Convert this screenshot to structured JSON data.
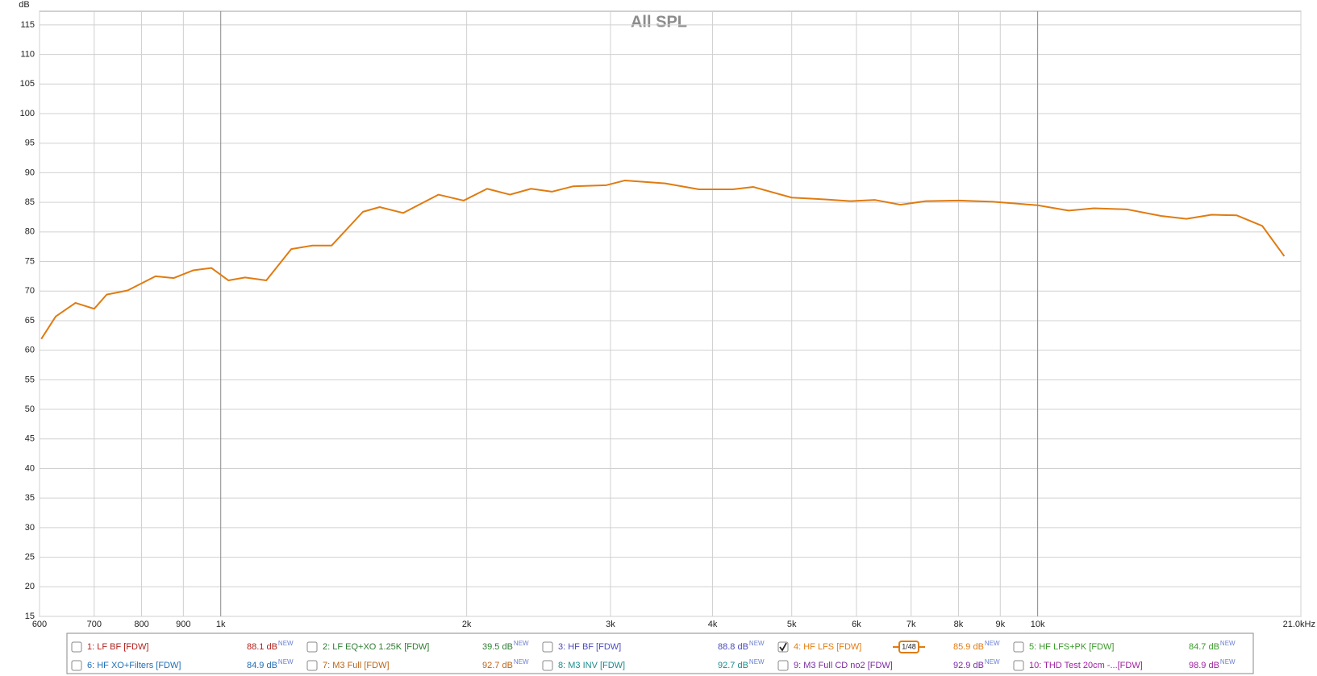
{
  "chart_data": {
    "type": "line",
    "title": "All SPL",
    "y_label": "dB",
    "x_scale": "log",
    "grid": true,
    "xlim": [
      600,
      21000
    ],
    "ylim": [
      15,
      117.3
    ],
    "xticks": [
      600,
      700,
      800,
      900,
      {
        "value": 1000,
        "label": "1k"
      },
      {
        "value": 2000,
        "label": "2k"
      },
      {
        "value": 3000,
        "label": "3k"
      },
      {
        "value": 4000,
        "label": "4k"
      },
      {
        "value": 5000,
        "label": "5k"
      },
      {
        "value": 6000,
        "label": "6k"
      },
      {
        "value": 7000,
        "label": "7k"
      },
      {
        "value": 8000,
        "label": "8k"
      },
      {
        "value": 9000,
        "label": "9k"
      },
      {
        "value": 10000,
        "label": "10k"
      },
      {
        "value": 21000,
        "label": "21.0kHz"
      }
    ],
    "yticks": [
      15,
      20,
      25,
      30,
      35,
      40,
      45,
      50,
      55,
      60,
      65,
      70,
      75,
      80,
      85,
      90,
      95,
      100,
      105,
      110,
      115
    ],
    "x": [
      603,
      628,
      664,
      700,
      725,
      769,
      832,
      876,
      925,
      974,
      1022,
      1071,
      1137,
      1220,
      1295,
      1367,
      1493,
      1565,
      1672,
      1847,
      1983,
      2119,
      2259,
      2398,
      2543,
      2698,
      2965,
      3125,
      3501,
      3849,
      4234,
      4488,
      4999,
      5494,
      5900,
      6324,
      6792,
      7294,
      8017,
      8814,
      10000,
      10914,
      11718,
      12880,
      14160,
      15210,
      16330,
      17530,
      18840,
      20040
    ],
    "series": [
      {
        "color": "#e07b10",
        "values": [
          61.9,
          65.7,
          68.0,
          67.0,
          69.4,
          70.1,
          72.5,
          72.2,
          73.5,
          73.9,
          71.8,
          72.3,
          71.8,
          77.1,
          77.7,
          77.7,
          83.4,
          84.2,
          83.2,
          86.3,
          85.3,
          87.3,
          86.3,
          87.3,
          86.8,
          87.7,
          87.9,
          88.7,
          88.2,
          87.2,
          87.2,
          87.6,
          85.8,
          85.5,
          85.2,
          85.4,
          84.6,
          85.2,
          85.3,
          85.1,
          84.5,
          83.6,
          84.0,
          83.8,
          82.7,
          82.2,
          82.9,
          82.8,
          81.0,
          75.9
        ]
      }
    ]
  },
  "legend": {
    "new_badge": "NEW",
    "smoothing": "1/48",
    "entries": [
      {
        "label": "1: LF BF [FDW]",
        "level": "88.1 dB",
        "color": "#b0201c",
        "checked": false
      },
      {
        "label": "2: LF EQ+XO 1.25K [FDW]",
        "level": "39.5 dB",
        "color": "#2e7d32",
        "checked": false
      },
      {
        "label": "3: HF BF [FDW]",
        "level": "88.8 dB",
        "color": "#4a4ac0",
        "checked": false
      },
      {
        "label": "4: HF LFS [FDW]",
        "level": "85.9 dB",
        "color": "#e07b10",
        "checked": true
      },
      {
        "label": "5: HF LFS+PK [FDW]",
        "level": "84.7 dB",
        "color": "#3a9a2a",
        "checked": false
      },
      {
        "label": "6: HF XO+Filters [FDW]",
        "level": "84.9 dB",
        "color": "#1e6eb4",
        "checked": false
      },
      {
        "label": "7: M3 Full [FDW]",
        "level": "92.7 dB",
        "color": "#b8651a",
        "checked": false
      },
      {
        "label": "8: M3 INV [FDW]",
        "level": "92.7 dB",
        "color": "#1a8a8a",
        "checked": false
      },
      {
        "label": "9: M3 Full CD no2 [FDW]",
        "level": "92.9 dB",
        "color": "#7a2aa0",
        "checked": false
      },
      {
        "label": "10: THD Test 20cm -...[FDW]",
        "level": "98.9 dB",
        "color": "#a020a0",
        "checked": false
      }
    ]
  }
}
